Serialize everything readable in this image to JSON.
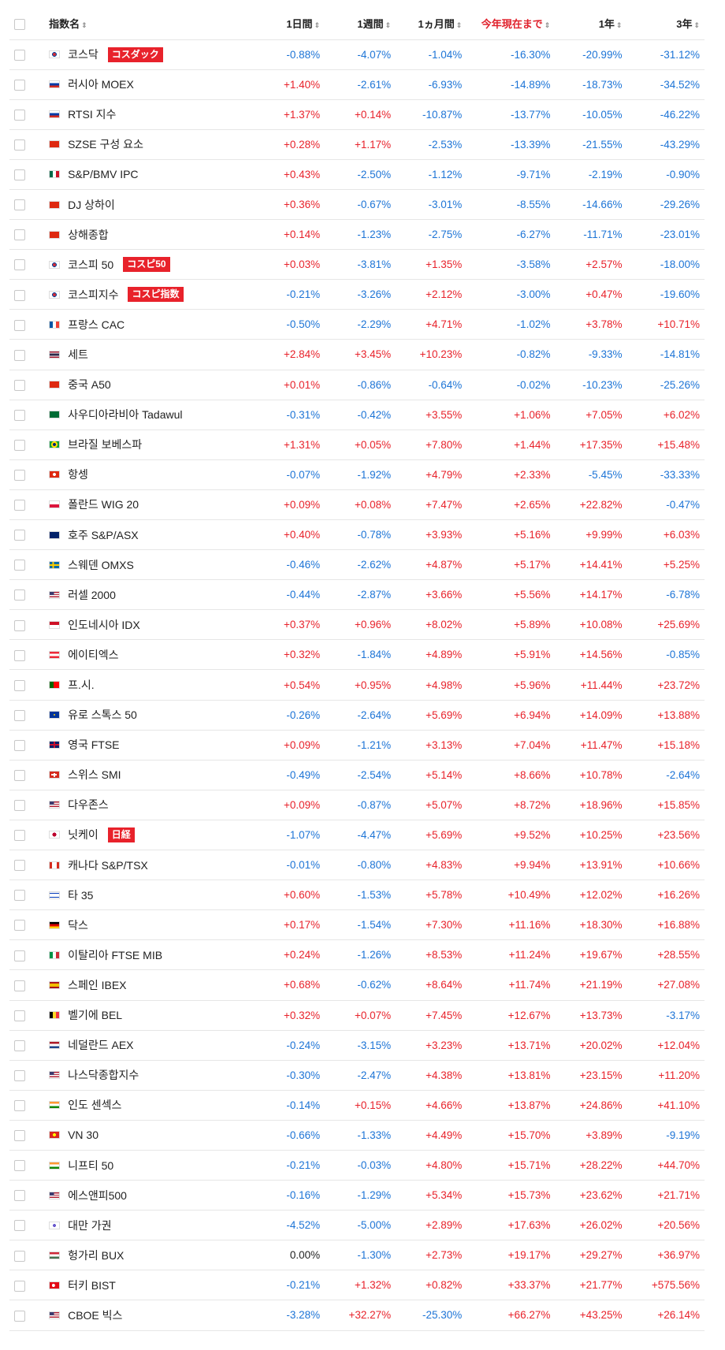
{
  "headers": {
    "name": "指数名",
    "d1": "1日間",
    "w1": "1週間",
    "m1": "1ヵ月間",
    "ytd": "今年現在まで",
    "y1": "1年",
    "y3": "3年",
    "sort_glyph": "⇕"
  },
  "colors": {
    "positive": "#e8222b",
    "negative": "#1d74d6",
    "badge": "#e8222b"
  },
  "rows": [
    {
      "name": "코스닥",
      "badge": "コスダック",
      "flag": "kr",
      "d1": "-0.88%",
      "w1": "-4.07%",
      "m1": "-1.04%",
      "ytd": "-16.30%",
      "y1": "-20.99%",
      "y3": "-31.12%"
    },
    {
      "name": "러시아 MOEX",
      "badge": "",
      "flag": "ru",
      "d1": "+1.40%",
      "w1": "-2.61%",
      "m1": "-6.93%",
      "ytd": "-14.89%",
      "y1": "-18.73%",
      "y3": "-34.52%"
    },
    {
      "name": "RTSI 지수",
      "badge": "",
      "flag": "ru",
      "d1": "+1.37%",
      "w1": "+0.14%",
      "m1": "-10.87%",
      "ytd": "-13.77%",
      "y1": "-10.05%",
      "y3": "-46.22%"
    },
    {
      "name": "SZSE 구성 요소",
      "badge": "",
      "flag": "cn",
      "d1": "+0.28%",
      "w1": "+1.17%",
      "m1": "-2.53%",
      "ytd": "-13.39%",
      "y1": "-21.55%",
      "y3": "-43.29%"
    },
    {
      "name": "S&P/BMV IPC",
      "badge": "",
      "flag": "mx",
      "d1": "+0.43%",
      "w1": "-2.50%",
      "m1": "-1.12%",
      "ytd": "-9.71%",
      "y1": "-2.19%",
      "y3": "-0.90%"
    },
    {
      "name": "DJ 상하이",
      "badge": "",
      "flag": "cn",
      "d1": "+0.36%",
      "w1": "-0.67%",
      "m1": "-3.01%",
      "ytd": "-8.55%",
      "y1": "-14.66%",
      "y3": "-29.26%"
    },
    {
      "name": "상해종합",
      "badge": "",
      "flag": "cn",
      "d1": "+0.14%",
      "w1": "-1.23%",
      "m1": "-2.75%",
      "ytd": "-6.27%",
      "y1": "-11.71%",
      "y3": "-23.01%"
    },
    {
      "name": "코스피 50",
      "badge": "コスピ50",
      "flag": "kr",
      "d1": "+0.03%",
      "w1": "-3.81%",
      "m1": "+1.35%",
      "ytd": "-3.58%",
      "y1": "+2.57%",
      "y3": "-18.00%"
    },
    {
      "name": "코스피지수",
      "badge": "コスピ指数",
      "flag": "kr",
      "d1": "-0.21%",
      "w1": "-3.26%",
      "m1": "+2.12%",
      "ytd": "-3.00%",
      "y1": "+0.47%",
      "y3": "-19.60%"
    },
    {
      "name": "프랑스 CAC",
      "badge": "",
      "flag": "fr",
      "d1": "-0.50%",
      "w1": "-2.29%",
      "m1": "+4.71%",
      "ytd": "-1.02%",
      "y1": "+3.78%",
      "y3": "+10.71%"
    },
    {
      "name": "세트",
      "badge": "",
      "flag": "th",
      "d1": "+2.84%",
      "w1": "+3.45%",
      "m1": "+10.23%",
      "ytd": "-0.82%",
      "y1": "-9.33%",
      "y3": "-14.81%"
    },
    {
      "name": "중국 A50",
      "badge": "",
      "flag": "cn",
      "d1": "+0.01%",
      "w1": "-0.86%",
      "m1": "-0.64%",
      "ytd": "-0.02%",
      "y1": "-10.23%",
      "y3": "-25.26%"
    },
    {
      "name": "사우디아라비아 Tadawul",
      "badge": "",
      "flag": "sa",
      "d1": "-0.31%",
      "w1": "-0.42%",
      "m1": "+3.55%",
      "ytd": "+1.06%",
      "y1": "+7.05%",
      "y3": "+6.02%"
    },
    {
      "name": "브라질 보베스파",
      "badge": "",
      "flag": "br",
      "d1": "+1.31%",
      "w1": "+0.05%",
      "m1": "+7.80%",
      "ytd": "+1.44%",
      "y1": "+17.35%",
      "y3": "+15.48%"
    },
    {
      "name": "항셍",
      "badge": "",
      "flag": "hk",
      "d1": "-0.07%",
      "w1": "-1.92%",
      "m1": "+4.79%",
      "ytd": "+2.33%",
      "y1": "-5.45%",
      "y3": "-33.33%"
    },
    {
      "name": "폴란드 WIG 20",
      "badge": "",
      "flag": "pl",
      "d1": "+0.09%",
      "w1": "+0.08%",
      "m1": "+7.47%",
      "ytd": "+2.65%",
      "y1": "+22.82%",
      "y3": "-0.47%"
    },
    {
      "name": "호주 S&P/ASX",
      "badge": "",
      "flag": "au",
      "d1": "+0.40%",
      "w1": "-0.78%",
      "m1": "+3.93%",
      "ytd": "+5.16%",
      "y1": "+9.99%",
      "y3": "+6.03%"
    },
    {
      "name": "스웨덴 OMXS",
      "badge": "",
      "flag": "se",
      "d1": "-0.46%",
      "w1": "-2.62%",
      "m1": "+4.87%",
      "ytd": "+5.17%",
      "y1": "+14.41%",
      "y3": "+5.25%"
    },
    {
      "name": "러셀 2000",
      "badge": "",
      "flag": "us",
      "d1": "-0.44%",
      "w1": "-2.87%",
      "m1": "+3.66%",
      "ytd": "+5.56%",
      "y1": "+14.17%",
      "y3": "-6.78%"
    },
    {
      "name": "인도네시아 IDX",
      "badge": "",
      "flag": "id",
      "d1": "+0.37%",
      "w1": "+0.96%",
      "m1": "+8.02%",
      "ytd": "+5.89%",
      "y1": "+10.08%",
      "y3": "+25.69%"
    },
    {
      "name": "에이티엑스",
      "badge": "",
      "flag": "at",
      "d1": "+0.32%",
      "w1": "-1.84%",
      "m1": "+4.89%",
      "ytd": "+5.91%",
      "y1": "+14.56%",
      "y3": "-0.85%"
    },
    {
      "name": "프.시.",
      "badge": "",
      "flag": "pt",
      "d1": "+0.54%",
      "w1": "+0.95%",
      "m1": "+4.98%",
      "ytd": "+5.96%",
      "y1": "+11.44%",
      "y3": "+23.72%"
    },
    {
      "name": "유로 스톡스 50",
      "badge": "",
      "flag": "eu",
      "d1": "-0.26%",
      "w1": "-2.64%",
      "m1": "+5.69%",
      "ytd": "+6.94%",
      "y1": "+14.09%",
      "y3": "+13.88%"
    },
    {
      "name": "영국 FTSE",
      "badge": "",
      "flag": "gb",
      "d1": "+0.09%",
      "w1": "-1.21%",
      "m1": "+3.13%",
      "ytd": "+7.04%",
      "y1": "+11.47%",
      "y3": "+15.18%"
    },
    {
      "name": "스위스 SMI",
      "badge": "",
      "flag": "ch",
      "d1": "-0.49%",
      "w1": "-2.54%",
      "m1": "+5.14%",
      "ytd": "+8.66%",
      "y1": "+10.78%",
      "y3": "-2.64%"
    },
    {
      "name": "다우존스",
      "badge": "",
      "flag": "us",
      "d1": "+0.09%",
      "w1": "-0.87%",
      "m1": "+5.07%",
      "ytd": "+8.72%",
      "y1": "+18.96%",
      "y3": "+15.85%"
    },
    {
      "name": "닛케이",
      "badge": "日経",
      "flag": "jp",
      "d1": "-1.07%",
      "w1": "-4.47%",
      "m1": "+5.69%",
      "ytd": "+9.52%",
      "y1": "+10.25%",
      "y3": "+23.56%"
    },
    {
      "name": "캐나다 S&P/TSX",
      "badge": "",
      "flag": "ca",
      "d1": "-0.01%",
      "w1": "-0.80%",
      "m1": "+4.83%",
      "ytd": "+9.94%",
      "y1": "+13.91%",
      "y3": "+10.66%"
    },
    {
      "name": "타 35",
      "badge": "",
      "flag": "il",
      "d1": "+0.60%",
      "w1": "-1.53%",
      "m1": "+5.78%",
      "ytd": "+10.49%",
      "y1": "+12.02%",
      "y3": "+16.26%"
    },
    {
      "name": "닥스",
      "badge": "",
      "flag": "de",
      "d1": "+0.17%",
      "w1": "-1.54%",
      "m1": "+7.30%",
      "ytd": "+11.16%",
      "y1": "+18.30%",
      "y3": "+16.88%"
    },
    {
      "name": "이탈리아 FTSE MIB",
      "badge": "",
      "flag": "it",
      "d1": "+0.24%",
      "w1": "-1.26%",
      "m1": "+8.53%",
      "ytd": "+11.24%",
      "y1": "+19.67%",
      "y3": "+28.55%"
    },
    {
      "name": "스페인 IBEX",
      "badge": "",
      "flag": "es",
      "d1": "+0.68%",
      "w1": "-0.62%",
      "m1": "+8.64%",
      "ytd": "+11.74%",
      "y1": "+21.19%",
      "y3": "+27.08%"
    },
    {
      "name": "벨기에 BEL",
      "badge": "",
      "flag": "be",
      "d1": "+0.32%",
      "w1": "+0.07%",
      "m1": "+7.45%",
      "ytd": "+12.67%",
      "y1": "+13.73%",
      "y3": "-3.17%"
    },
    {
      "name": "네덜란드 AEX",
      "badge": "",
      "flag": "nl",
      "d1": "-0.24%",
      "w1": "-3.15%",
      "m1": "+3.23%",
      "ytd": "+13.71%",
      "y1": "+20.02%",
      "y3": "+12.04%"
    },
    {
      "name": "나스닥종합지수",
      "badge": "",
      "flag": "us",
      "d1": "-0.30%",
      "w1": "-2.47%",
      "m1": "+4.38%",
      "ytd": "+13.81%",
      "y1": "+23.15%",
      "y3": "+11.20%"
    },
    {
      "name": "인도 센섹스",
      "badge": "",
      "flag": "in",
      "d1": "-0.14%",
      "w1": "+0.15%",
      "m1": "+4.66%",
      "ytd": "+13.87%",
      "y1": "+24.86%",
      "y3": "+41.10%"
    },
    {
      "name": "VN 30",
      "badge": "",
      "flag": "vn",
      "d1": "-0.66%",
      "w1": "-1.33%",
      "m1": "+4.49%",
      "ytd": "+15.70%",
      "y1": "+3.89%",
      "y3": "-9.19%"
    },
    {
      "name": "니프티 50",
      "badge": "",
      "flag": "in",
      "d1": "-0.21%",
      "w1": "-0.03%",
      "m1": "+4.80%",
      "ytd": "+15.71%",
      "y1": "+28.22%",
      "y3": "+44.70%"
    },
    {
      "name": "에스앤피500",
      "badge": "",
      "flag": "us",
      "d1": "-0.16%",
      "w1": "-1.29%",
      "m1": "+5.34%",
      "ytd": "+15.73%",
      "y1": "+23.62%",
      "y3": "+21.71%"
    },
    {
      "name": "대만 가권",
      "badge": "",
      "flag": "tw",
      "d1": "-4.52%",
      "w1": "-5.00%",
      "m1": "+2.89%",
      "ytd": "+17.63%",
      "y1": "+26.02%",
      "y3": "+20.56%"
    },
    {
      "name": "헝가리 BUX",
      "badge": "",
      "flag": "hu",
      "d1": "0.00%",
      "w1": "-1.30%",
      "m1": "+2.73%",
      "ytd": "+19.17%",
      "y1": "+29.27%",
      "y3": "+36.97%"
    },
    {
      "name": "터키 BIST",
      "badge": "",
      "flag": "tr",
      "d1": "-0.21%",
      "w1": "+1.32%",
      "m1": "+0.82%",
      "ytd": "+33.37%",
      "y1": "+21.77%",
      "y3": "+575.56%"
    },
    {
      "name": "CBOE 빅스",
      "badge": "",
      "flag": "us",
      "d1": "-3.28%",
      "w1": "+32.27%",
      "m1": "-25.30%",
      "ytd": "+66.27%",
      "y1": "+43.25%",
      "y3": "+26.14%"
    }
  ]
}
